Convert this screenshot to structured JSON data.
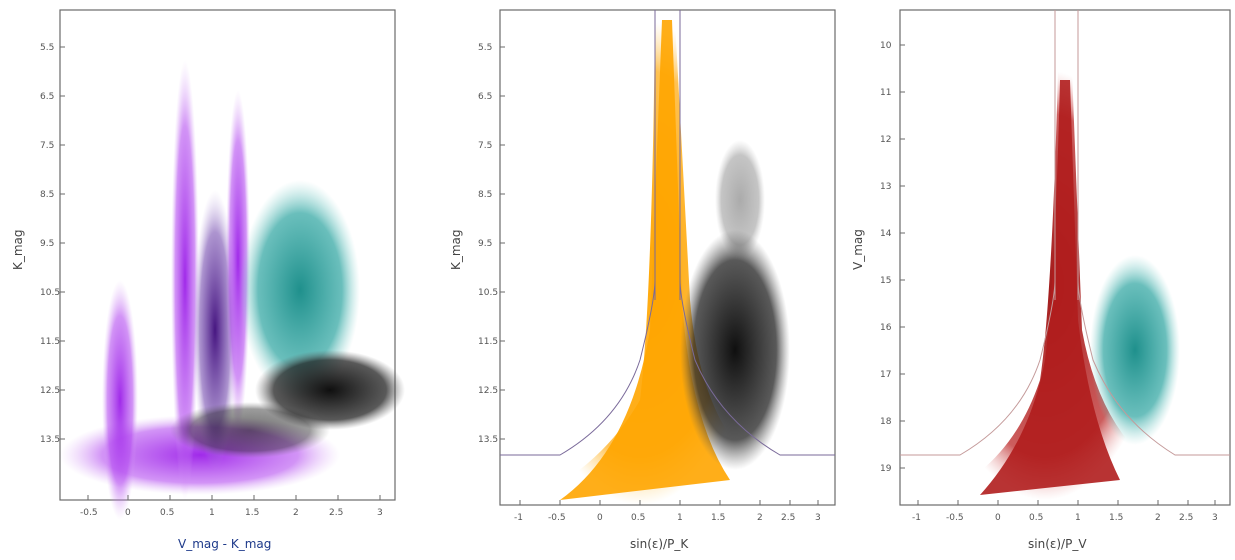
{
  "chart_data": [
    {
      "type": "scatter",
      "title": "",
      "xlabel": "V_mag - K_mag",
      "ylabel": "K_mag",
      "x_tick_labels": [
        "-0.5",
        "0",
        "0.5",
        "1",
        "1.5",
        "2",
        "2.5",
        "3"
      ],
      "y_tick_labels": [
        "5.5",
        "6.5",
        "7.5",
        "8.5",
        "9.5",
        "10.5",
        "11.5",
        "12.5",
        "13.5"
      ],
      "legend": "top-left",
      "colors": {
        "purple": "#a020f0",
        "dark_purple": "#4b0f8f",
        "teal": "#1b8a86",
        "black": "#111111"
      },
      "series": []
    },
    {
      "type": "scatter",
      "title": "",
      "xlabel": "sin(ε)/P_K",
      "ylabel": "K_mag",
      "x_tick_labels": [
        "-1",
        "-0.5",
        "0",
        "0.5",
        "1",
        "1.5",
        "2",
        "2.5",
        "3"
      ],
      "y_tick_labels": [
        "5.5",
        "6.5",
        "7.5",
        "8.5",
        "9.5",
        "10.5",
        "11.5",
        "12.5",
        "13.5"
      ],
      "legend": "top-center",
      "colors": {
        "orange": "#ffa500",
        "black": "#111111",
        "boundary": "#7a6a9a"
      },
      "series": []
    },
    {
      "type": "scatter",
      "title": "",
      "xlabel": "sin(ε)/P_V",
      "ylabel": "V_mag",
      "x_tick_labels": [
        "-1",
        "-0.5",
        "0",
        "0.5",
        "1",
        "1.5",
        "2",
        "2.5",
        "3"
      ],
      "y_tick_labels": [
        "10",
        "11",
        "12",
        "13",
        "14",
        "15",
        "16",
        "17",
        "18",
        "19"
      ],
      "legend": "top-right",
      "colors": {
        "red": "#b22222",
        "teal": "#1b8a86",
        "boundary": "#c49a9a"
      },
      "series": []
    }
  ],
  "panels": {
    "p1": {
      "xlabel": "V_mag - K_mag",
      "ylabel": "K_mag"
    },
    "p2": {
      "xlabel": "sin(ε)/P_K",
      "ylabel": "K_mag"
    },
    "p3": {
      "xlabel": "sin(ε)/P_V",
      "ylabel": "V_mag"
    }
  }
}
